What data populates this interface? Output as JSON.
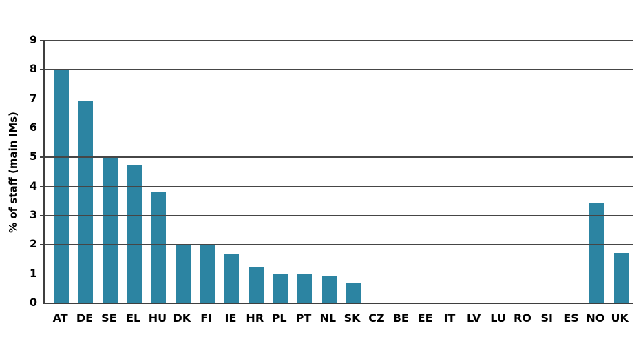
{
  "chart_data": {
    "type": "bar",
    "title": "",
    "xlabel": "",
    "ylabel": "% of staff (main IMs)",
    "categories": [
      "AT",
      "DE",
      "SE",
      "EL",
      "HU",
      "DK",
      "FI",
      "IE",
      "HR",
      "PL",
      "PT",
      "NL",
      "SK",
      "CZ",
      "BE",
      "EE",
      "IT",
      "LV",
      "LU",
      "RO",
      "SI",
      "ES",
      "NO",
      "UK"
    ],
    "values": [
      8.0,
      6.9,
      5.0,
      4.7,
      3.8,
      2.0,
      2.0,
      1.65,
      1.2,
      1.0,
      1.0,
      0.9,
      0.65,
      0,
      0,
      0,
      0,
      0,
      0,
      0,
      0,
      0,
      3.4,
      1.7
    ],
    "ylim": [
      0,
      9
    ],
    "ytick_step": 1,
    "yticks": [
      "0",
      "1",
      "2",
      "3",
      "4",
      "5",
      "6",
      "7",
      "8",
      "9"
    ],
    "grid": "horizontal gridlines on, vertical off",
    "legend": "none",
    "colors": {
      "bar": "#2C84A2",
      "gridline": "#464646",
      "axis": "#3f3f3f",
      "text": "#000000",
      "background": "#ffffff"
    }
  }
}
